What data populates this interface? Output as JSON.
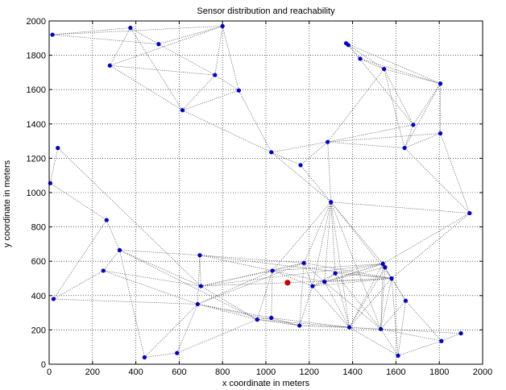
{
  "chart_data": {
    "type": "scatter",
    "title": "Sensor distribution and reachability",
    "xlabel": "x coordinate in meters",
    "ylabel": "y coordinate in meters",
    "xlim": [
      0,
      2000
    ],
    "ylim": [
      0,
      2000
    ],
    "xticks": [
      0,
      200,
      400,
      600,
      800,
      1000,
      1200,
      1400,
      1600,
      1800,
      2000
    ],
    "yticks": [
      0,
      200,
      400,
      600,
      800,
      1000,
      1200,
      1400,
      1600,
      1800,
      2000
    ],
    "grid": true,
    "colors": {
      "sensor": "#0000cc",
      "base_station": "#cc0000",
      "link": "#555555",
      "grid": "#000000"
    },
    "sensors": [
      {
        "x": 15,
        "y": 1920
      },
      {
        "x": 375,
        "y": 1960
      },
      {
        "x": 800,
        "y": 1970
      },
      {
        "x": 505,
        "y": 1865
      },
      {
        "x": 280,
        "y": 1740
      },
      {
        "x": 765,
        "y": 1685
      },
      {
        "x": 875,
        "y": 1595
      },
      {
        "x": 615,
        "y": 1480
      },
      {
        "x": 1370,
        "y": 1870
      },
      {
        "x": 1380,
        "y": 1860
      },
      {
        "x": 1435,
        "y": 1780
      },
      {
        "x": 1545,
        "y": 1720
      },
      {
        "x": 1805,
        "y": 1635
      },
      {
        "x": 1680,
        "y": 1395
      },
      {
        "x": 1805,
        "y": 1345
      },
      {
        "x": 1640,
        "y": 1260
      },
      {
        "x": 1285,
        "y": 1295
      },
      {
        "x": 1025,
        "y": 1235
      },
      {
        "x": 1160,
        "y": 1160
      },
      {
        "x": 40,
        "y": 1260
      },
      {
        "x": 5,
        "y": 1055
      },
      {
        "x": 1300,
        "y": 945
      },
      {
        "x": 1940,
        "y": 880
      },
      {
        "x": 265,
        "y": 840
      },
      {
        "x": 325,
        "y": 665
      },
      {
        "x": 695,
        "y": 635
      },
      {
        "x": 20,
        "y": 380
      },
      {
        "x": 250,
        "y": 545
      },
      {
        "x": 700,
        "y": 455
      },
      {
        "x": 685,
        "y": 350
      },
      {
        "x": 1030,
        "y": 545
      },
      {
        "x": 1175,
        "y": 590
      },
      {
        "x": 1215,
        "y": 455
      },
      {
        "x": 1270,
        "y": 480
      },
      {
        "x": 1320,
        "y": 530
      },
      {
        "x": 1540,
        "y": 585
      },
      {
        "x": 1550,
        "y": 565
      },
      {
        "x": 1580,
        "y": 500
      },
      {
        "x": 1645,
        "y": 370
      },
      {
        "x": 960,
        "y": 260
      },
      {
        "x": 1025,
        "y": 270
      },
      {
        "x": 1155,
        "y": 225
      },
      {
        "x": 1385,
        "y": 215
      },
      {
        "x": 1530,
        "y": 205
      },
      {
        "x": 1900,
        "y": 180
      },
      {
        "x": 1810,
        "y": 135
      },
      {
        "x": 1610,
        "y": 50
      },
      {
        "x": 440,
        "y": 40
      },
      {
        "x": 590,
        "y": 65
      }
    ],
    "base_station": {
      "x": 1100,
      "y": 475
    },
    "links": [
      [
        0,
        1
      ],
      [
        0,
        2
      ],
      [
        0,
        3
      ],
      [
        1,
        3
      ],
      [
        1,
        4
      ],
      [
        2,
        4
      ],
      [
        2,
        3
      ],
      [
        3,
        5
      ],
      [
        5,
        6
      ],
      [
        2,
        5
      ],
      [
        4,
        5
      ],
      [
        1,
        7
      ],
      [
        5,
        7
      ],
      [
        6,
        7
      ],
      [
        6,
        17
      ],
      [
        7,
        17
      ],
      [
        2,
        6
      ],
      [
        4,
        7
      ],
      [
        8,
        9
      ],
      [
        9,
        10
      ],
      [
        10,
        11
      ],
      [
        11,
        12
      ],
      [
        8,
        12
      ],
      [
        9,
        11
      ],
      [
        10,
        12
      ],
      [
        12,
        13
      ],
      [
        12,
        14
      ],
      [
        11,
        13
      ],
      [
        13,
        15
      ],
      [
        14,
        15
      ],
      [
        12,
        15
      ],
      [
        9,
        13
      ],
      [
        11,
        15
      ],
      [
        16,
        17
      ],
      [
        16,
        18
      ],
      [
        17,
        18
      ],
      [
        16,
        21
      ],
      [
        18,
        21
      ],
      [
        15,
        16
      ],
      [
        14,
        16
      ],
      [
        13,
        16
      ],
      [
        16,
        11
      ],
      [
        17,
        21
      ],
      [
        21,
        22
      ],
      [
        22,
        14
      ],
      [
        22,
        15
      ],
      [
        19,
        20
      ],
      [
        20,
        23
      ],
      [
        19,
        28
      ],
      [
        23,
        24
      ],
      [
        23,
        26
      ],
      [
        24,
        27
      ],
      [
        26,
        27
      ],
      [
        24,
        28
      ],
      [
        25,
        28
      ],
      [
        25,
        29
      ],
      [
        24,
        25
      ],
      [
        27,
        28
      ],
      [
        21,
        30
      ],
      [
        21,
        31
      ],
      [
        21,
        32
      ],
      [
        21,
        33
      ],
      [
        21,
        34
      ],
      [
        21,
        35
      ],
      [
        21,
        37
      ],
      [
        21,
        42
      ],
      [
        21,
        43
      ],
      [
        22,
        37
      ],
      [
        22,
        35
      ],
      [
        25,
        30
      ],
      [
        25,
        31
      ],
      [
        25,
        37
      ],
      [
        28,
        30
      ],
      [
        28,
        31
      ],
      [
        28,
        35
      ],
      [
        28,
        37
      ],
      [
        29,
        30
      ],
      [
        29,
        31
      ],
      [
        29,
        39
      ],
      [
        29,
        40
      ],
      [
        30,
        31
      ],
      [
        30,
        32
      ],
      [
        30,
        33
      ],
      [
        30,
        35
      ],
      [
        30,
        39
      ],
      [
        30,
        40
      ],
      [
        31,
        32
      ],
      [
        31,
        33
      ],
      [
        31,
        37
      ],
      [
        31,
        41
      ],
      [
        32,
        33
      ],
      [
        32,
        34
      ],
      [
        32,
        35
      ],
      [
        32,
        37
      ],
      [
        32,
        41
      ],
      [
        32,
        42
      ],
      [
        33,
        34
      ],
      [
        33,
        35
      ],
      [
        33,
        36
      ],
      [
        33,
        37
      ],
      [
        33,
        42
      ],
      [
        33,
        43
      ],
      [
        34,
        35
      ],
      [
        34,
        37
      ],
      [
        34,
        42
      ],
      [
        35,
        36
      ],
      [
        35,
        37
      ],
      [
        35,
        38
      ],
      [
        35,
        42
      ],
      [
        35,
        43
      ],
      [
        36,
        37
      ],
      [
        37,
        38
      ],
      [
        37,
        42
      ],
      [
        37,
        43
      ],
      [
        37,
        46
      ],
      [
        38,
        43
      ],
      [
        38,
        45
      ],
      [
        38,
        46
      ],
      [
        39,
        40
      ],
      [
        39,
        41
      ],
      [
        39,
        42
      ],
      [
        40,
        41
      ],
      [
        40,
        42
      ],
      [
        41,
        42
      ],
      [
        41,
        43
      ],
      [
        42,
        43
      ],
      [
        42,
        46
      ],
      [
        43,
        45
      ],
      [
        43,
        44
      ],
      [
        44,
        45
      ],
      [
        45,
        46
      ],
      [
        43,
        46
      ],
      [
        47,
        48
      ],
      [
        47,
        29
      ],
      [
        48,
        29
      ],
      [
        48,
        39
      ],
      [
        47,
        24
      ],
      [
        26,
        29
      ],
      [
        27,
        29
      ],
      [
        24,
        39
      ],
      [
        29,
        41
      ],
      [
        28,
        39
      ],
      [
        36,
        42
      ],
      [
        36,
        43
      ],
      [
        34,
        43
      ]
    ]
  }
}
